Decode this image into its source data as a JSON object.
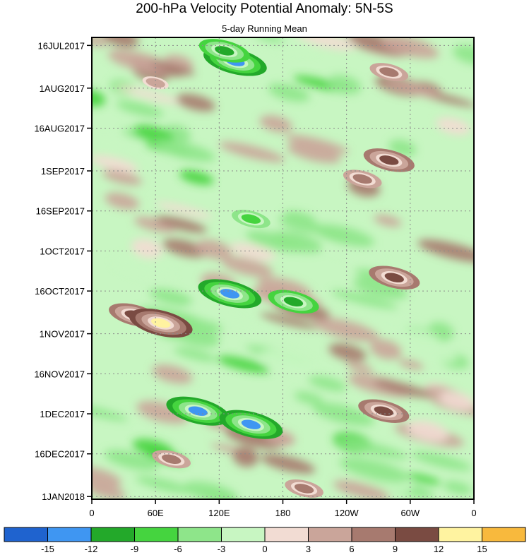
{
  "chart_data": {
    "type": "heatmap",
    "title": "200-hPa Velocity Potential Anomaly: 5N-5S",
    "subtitle": "5-day Running Mean",
    "x_axis": {
      "ticks": [
        "0",
        "60E",
        "120E",
        "180",
        "120W",
        "60W",
        "0"
      ],
      "tick_values": [
        0,
        60,
        120,
        180,
        240,
        300,
        360
      ],
      "range": [
        0,
        360
      ]
    },
    "y_axis": {
      "ticks": [
        "16JUL2017",
        "1AUG2017",
        "16AUG2017",
        "1SEP2017",
        "16SEP2017",
        "1OCT2017",
        "16OCT2017",
        "1NOV2017",
        "16NOV2017",
        "1DEC2017",
        "16DEC2017",
        "1JAN2018"
      ],
      "tick_days": [
        0,
        16,
        31,
        47,
        62,
        77,
        92,
        108,
        123,
        138,
        153,
        169
      ],
      "range_days": [
        -3,
        170
      ]
    },
    "grid": true,
    "colorbar": {
      "boundaries": [
        -15,
        -12,
        -9,
        -6,
        -3,
        0,
        3,
        6,
        9,
        12,
        15
      ],
      "labels": [
        "-15",
        "-12",
        "-9",
        "-6",
        "-3",
        "0",
        "3",
        "6",
        "9",
        "12",
        "15"
      ],
      "colors": [
        "#1f63cf",
        "#3f96f2",
        "#23a92a",
        "#45d43f",
        "#8ee58a",
        "#c8f6c2",
        "#f2dcd3",
        "#caa59a",
        "#a77a6f",
        "#7a4b42",
        "#fff3a0",
        "#f8b93d"
      ]
    },
    "features": [
      {
        "lon": 135,
        "day": 6,
        "value": -13,
        "color": "#3f96f2"
      },
      {
        "lon": 125,
        "day": 2,
        "value": -9,
        "color": "#23a92a"
      },
      {
        "lon": 280,
        "day": 10,
        "value": 8,
        "color": "#a77a6f"
      },
      {
        "lon": 60,
        "day": 14,
        "value": 5,
        "color": "#caa59a"
      },
      {
        "lon": 280,
        "day": 43,
        "value": 10,
        "color": "#7a4b42"
      },
      {
        "lon": 255,
        "day": 50,
        "value": 7,
        "color": "#a77a6f"
      },
      {
        "lon": 150,
        "day": 65,
        "value": -7,
        "color": "#45d43f"
      },
      {
        "lon": 130,
        "day": 93,
        "value": -13,
        "color": "#3f96f2"
      },
      {
        "lon": 190,
        "day": 96,
        "value": -9,
        "color": "#23a92a"
      },
      {
        "lon": 285,
        "day": 87,
        "value": 11,
        "color": "#7a4b42"
      },
      {
        "lon": 40,
        "day": 101,
        "value": 10,
        "color": "#7a4b42"
      },
      {
        "lon": 65,
        "day": 104,
        "value": 13,
        "color": "#fff3a0"
      },
      {
        "lon": 100,
        "day": 137,
        "value": -12,
        "color": "#3f96f2"
      },
      {
        "lon": 150,
        "day": 142,
        "value": -12,
        "color": "#3f96f2"
      },
      {
        "lon": 275,
        "day": 137,
        "value": 9,
        "color": "#7a4b42"
      },
      {
        "lon": 75,
        "day": 155,
        "value": 8,
        "color": "#a77a6f"
      },
      {
        "lon": 200,
        "day": 166,
        "value": 8,
        "color": "#a77a6f"
      }
    ]
  }
}
